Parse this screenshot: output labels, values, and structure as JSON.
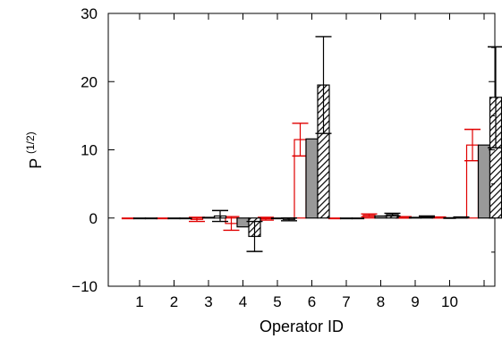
{
  "chart_data": {
    "type": "bar",
    "xlabel": "Operator ID",
    "ylabel": "P",
    "ylabel_superscript": "(1/2)",
    "ylim": [
      -10,
      30
    ],
    "yticks": [
      -10,
      0,
      10,
      20,
      30
    ],
    "categories": [
      "1",
      "2",
      "3",
      "4",
      "5",
      "6",
      "7",
      "8",
      "9",
      "10",
      ""
    ],
    "grid": false,
    "colors": {
      "series_a_edge": "#e00000",
      "series_a_fill": "#ffffff",
      "series_b_fill": "#999999",
      "series_c_fill": "hatched"
    },
    "series": [
      {
        "values": [
          0,
          0,
          -0.2,
          -0.8,
          -0.1,
          11.5,
          0,
          0.4,
          0.1,
          0.1,
          10.7
        ],
        "errors": [
          0,
          0,
          0.3,
          1.0,
          0.2,
          2.4,
          0,
          0.2,
          0.1,
          0.05,
          2.3
        ]
      },
      {
        "values": [
          0,
          0,
          0.1,
          -1.3,
          -0.1,
          11.6,
          0,
          0.3,
          0.1,
          0.05,
          10.7
        ],
        "errors": [
          0,
          0,
          0,
          0,
          0,
          0,
          0,
          0,
          0,
          0,
          0
        ]
      },
      {
        "values": [
          0,
          0,
          0.3,
          -2.7,
          -0.2,
          19.5,
          0,
          0.5,
          0.2,
          0.1,
          17.7
        ],
        "errors": [
          0,
          0,
          0.8,
          2.2,
          0.2,
          7.1,
          0,
          0.2,
          0.1,
          0.05,
          7.4
        ]
      }
    ]
  }
}
